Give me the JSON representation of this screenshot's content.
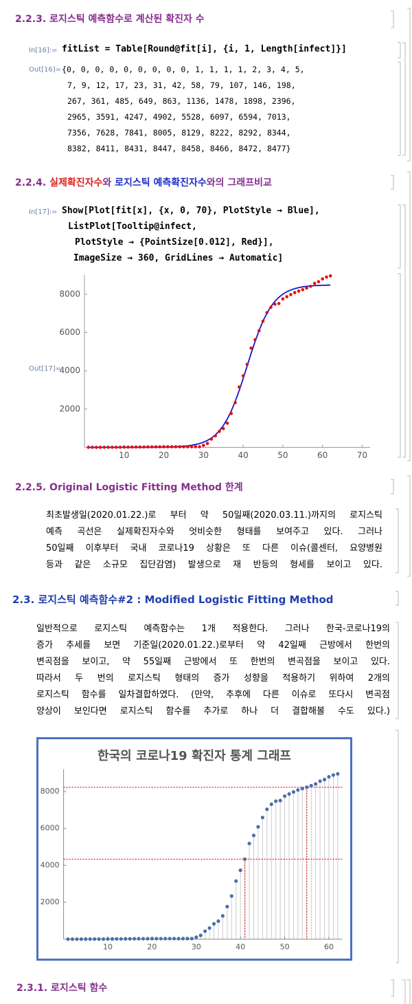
{
  "h223": "2.2.3. 로지스틱 예측함수로 계산된 확진자 수",
  "in16_label": "In[16]:=",
  "in16_code": [
    "fitList = Table[Round@fit[i], {i, 1, Length[infect]}]"
  ],
  "out16_label": "Out[16]=",
  "out16": {
    "open": "{",
    "close": "}",
    "sep": ", ",
    "values": [
      0,
      0,
      0,
      0,
      0,
      0,
      0,
      0,
      0,
      1,
      1,
      1,
      1,
      2,
      3,
      4,
      5,
      7,
      9,
      12,
      17,
      23,
      31,
      42,
      58,
      79,
      107,
      146,
      198,
      267,
      361,
      485,
      649,
      863,
      1136,
      1478,
      1898,
      2396,
      2965,
      3591,
      4247,
      4902,
      5528,
      6097,
      6594,
      7013,
      7356,
      7628,
      7841,
      8005,
      8129,
      8222,
      8292,
      8344,
      8382,
      8411,
      8431,
      8447,
      8458,
      8466,
      8472,
      8477
    ]
  },
  "h224": {
    "parts": [
      {
        "text": "2.2.4. ",
        "color": "#862e8e"
      },
      {
        "text": "실제확진자수",
        "color": "#e0201e"
      },
      {
        "text": "와 ",
        "color": "#862e8e"
      },
      {
        "text": "로지스틱 예측확진자수",
        "color": "#1d2fc8"
      },
      {
        "text": "와의 그래프비교",
        "color": "#862e8e"
      }
    ]
  },
  "in17_label": "In[17]:=",
  "in17_code": [
    "Show[Plot[fit[x], {x, 0, 70}, PlotStyle → Blue],",
    "ListPlot[Tooltip@infect,",
    "PlotStyle → {PointSize[0.012], Red}],",
    "ImageSize → 360, GridLines → Automatic]"
  ],
  "out17_label": "Out[17]=",
  "data": {
    "x": [
      1,
      2,
      3,
      4,
      5,
      6,
      7,
      8,
      9,
      10,
      11,
      12,
      13,
      14,
      15,
      16,
      17,
      18,
      19,
      20,
      21,
      22,
      23,
      24,
      25,
      26,
      27,
      28,
      29,
      30,
      31,
      32,
      33,
      34,
      35,
      36,
      37,
      38,
      39,
      40,
      41,
      42,
      43,
      44,
      45,
      46,
      47,
      48,
      49,
      50,
      51,
      52,
      53,
      54,
      55,
      56,
      57,
      58,
      59,
      60,
      61,
      62
    ],
    "infect": [
      1,
      1,
      1,
      2,
      3,
      4,
      4,
      4,
      4,
      11,
      12,
      15,
      15,
      16,
      19,
      23,
      24,
      24,
      25,
      27,
      28,
      28,
      28,
      28,
      28,
      29,
      30,
      31,
      31,
      104,
      204,
      433,
      602,
      833,
      977,
      1261,
      1766,
      2337,
      3150,
      3736,
      4335,
      5186,
      5621,
      6088,
      6593,
      7041,
      7314,
      7478,
      7513,
      7755,
      7869,
      7979,
      8086,
      8162,
      8236,
      8320,
      8413,
      8565,
      8652,
      8799,
      8897,
      8961
    ]
  },
  "plot1": {
    "type": "curve_scatter",
    "xlim": [
      0,
      72
    ],
    "ylim": [
      0,
      9000
    ],
    "xticks": [
      10,
      20,
      30,
      40,
      50,
      60,
      70
    ],
    "yticks": [
      2000,
      4000,
      6000,
      8000
    ],
    "point_color": "#e01010",
    "curve_color": "#1515d0"
  },
  "h225": "2.2.5. Original Logistic Fitting Method 한계",
  "p225": [
    "최초발생일(2020.01.22.)로 부터 약 50일째(2020.03.11.)까지의 로지스틱",
    "예측 곡선은 실제확진자수와 엇비슷한 형태를 보여주고 있다. 그러나",
    "50일째 이후부터 국내 코로나19 상황은 또 다른 이슈(콜센터, 요양병원",
    "등과 같은 소규모 집단감염) 발생으로 재 반등의 형세를 보이고 있다."
  ],
  "h23": "2.3. 로지스틱 예측함수#2 : Modified Logistic Fitting Method",
  "p23": [
    "일반적으로 로지스틱 예측함수는 1개 적용한다. 그러나 한국-코로나19의",
    "증가 추세를 보면 기준일(2020.01.22.)로부터 약 42일째 근방에서 한번의",
    "변곡점을 보이고, 약 55일째 근방에서 또 한번의 변곡점을 보이고 있다.",
    "따라서 두 번의 로지스틱 형태의 증가 성향을 적용하기 위하여 2개의",
    "로지스틱 함수를 일차결합하였다. (만약, 추후에 다른 이슈로 또다시 변곡점",
    "양상이 보인다면 로지스틱 함수를 추가로 하나 더 결합해볼 수도 있다.)"
  ],
  "plot2": {
    "type": "stem_scatter",
    "title": "한국의 코로나19 확진자 통계 그래프",
    "xlim": [
      0,
      63
    ],
    "ylim": [
      0,
      9200
    ],
    "xticks": [
      10,
      20,
      30,
      40,
      50,
      60
    ],
    "yticks": [
      2000,
      4000,
      6000,
      8000
    ],
    "point_color": "#4a6ea8",
    "stem_color": "#cccccc",
    "frame_color": "#4a72c4",
    "ref_color": "#e02020",
    "hlines": [
      4335,
      8236
    ],
    "vlines": [
      41,
      55
    ]
  },
  "h231": "2.3.1. 로지스틱 함수"
}
